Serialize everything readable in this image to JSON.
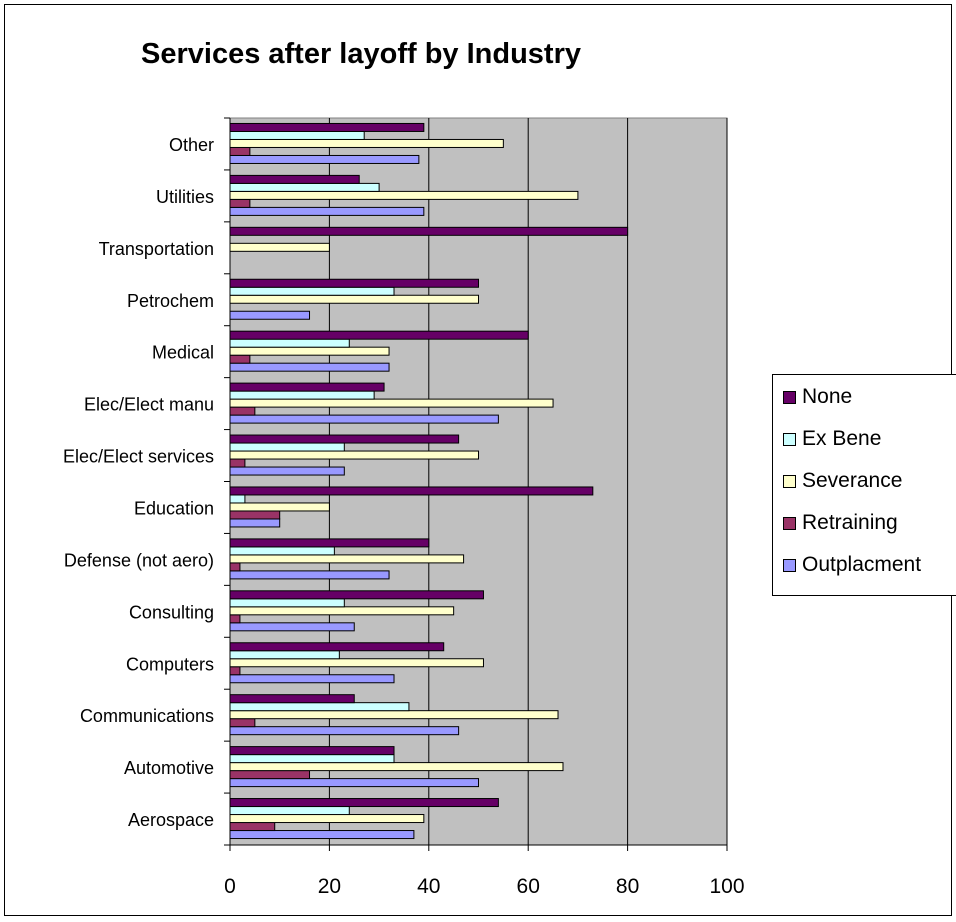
{
  "chart_data": {
    "type": "bar",
    "orientation": "horizontal",
    "title": "Services after layoff by Industry",
    "xlabel": "",
    "ylabel": "",
    "xlim": [
      0,
      100
    ],
    "x_ticks": [
      "0",
      "20",
      "40",
      "60",
      "80",
      "100"
    ],
    "grid": true,
    "legend_position": "right",
    "categories": [
      "Aerospace",
      "Automotive",
      "Communications",
      "Computers",
      "Consulting",
      "Defense (not aero)",
      "Education",
      "Elec/Elect services",
      "Elec/Elect manu",
      "Medical",
      "Petrochem",
      "Transportation",
      "Utilities",
      "Other"
    ],
    "series": [
      {
        "name": "Outplacment",
        "color": "#9999ff",
        "values": [
          37,
          50,
          46,
          33,
          25,
          32,
          10,
          23,
          54,
          32,
          16,
          0,
          39,
          38
        ]
      },
      {
        "name": "Retraining",
        "color": "#993366",
        "values": [
          9,
          16,
          5,
          2,
          2,
          2,
          10,
          3,
          5,
          4,
          0,
          0,
          4,
          4
        ]
      },
      {
        "name": "Severance",
        "color": "#ffffcc",
        "values": [
          39,
          67,
          66,
          51,
          45,
          47,
          20,
          50,
          65,
          32,
          50,
          20,
          70,
          55
        ]
      },
      {
        "name": "Ex Bene",
        "color": "#ccffff",
        "values": [
          24,
          33,
          36,
          22,
          23,
          21,
          3,
          23,
          29,
          24,
          33,
          0,
          30,
          27
        ]
      },
      {
        "name": "None",
        "color": "#660066",
        "values": [
          54,
          33,
          25,
          43,
          51,
          40,
          73,
          46,
          31,
          60,
          50,
          80,
          26,
          39
        ]
      }
    ],
    "legend_order": [
      "None",
      "Ex Bene",
      "Severance",
      "Retraining",
      "Outplacment"
    ]
  },
  "colors": {
    "plot_background": "#c0c0c0",
    "gridline": "#000000",
    "bar_outline": "#000000"
  }
}
